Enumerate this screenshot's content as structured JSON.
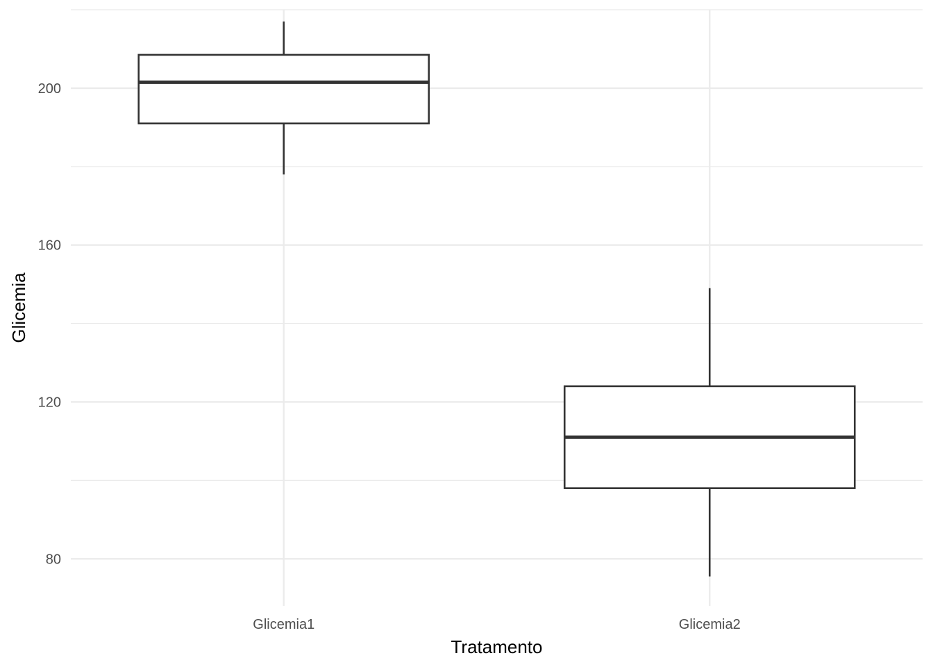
{
  "chart_data": {
    "type": "box",
    "title": "",
    "xlabel": "Tratamento",
    "ylabel": "Glicemia",
    "ylim": [
      68,
      220
    ],
    "y_major_ticks": [
      80,
      120,
      160,
      200
    ],
    "y_minor_ticks": [
      100,
      140,
      180,
      220
    ],
    "grid": true,
    "categories": [
      "Glicemia1",
      "Glicemia2"
    ],
    "boxes": [
      {
        "category": "Glicemia1",
        "whisker_low": 178,
        "q1": 191,
        "median": 201.5,
        "q3": 208.5,
        "whisker_high": 217
      },
      {
        "category": "Glicemia2",
        "whisker_low": 75.5,
        "q1": 98,
        "median": 111,
        "q3": 124,
        "whisker_high": 149
      }
    ],
    "colors": {
      "grid": "#ebebeb",
      "box_stroke": "#333333",
      "box_fill": "#ffffff"
    }
  }
}
